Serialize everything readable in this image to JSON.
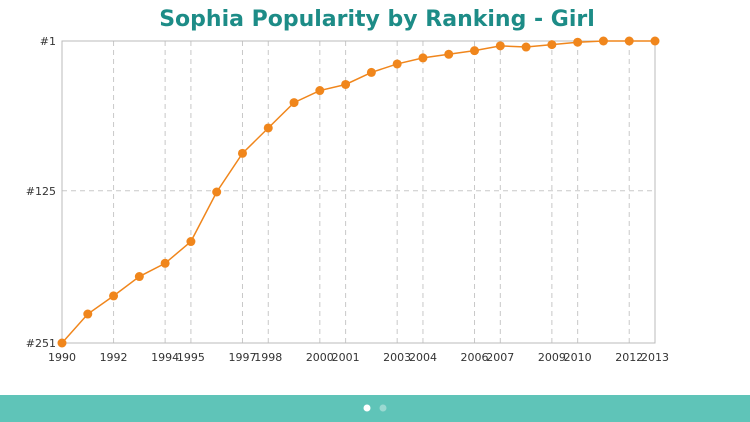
{
  "chart_data": {
    "type": "line",
    "title": "Sophia Popularity by Ranking - Girl",
    "x": [
      1990,
      1991,
      1992,
      1993,
      1994,
      1995,
      1996,
      1997,
      1998,
      1999,
      2000,
      2001,
      2002,
      2003,
      2004,
      2005,
      2006,
      2007,
      2008,
      2009,
      2010,
      2011,
      2012,
      2013
    ],
    "series": [
      {
        "name": "Sophia",
        "color": "#f0861c",
        "values": [
          251,
          227,
          212,
          196,
          185,
          167,
          126,
          94,
          73,
          52,
          42,
          37,
          27,
          20,
          15,
          12,
          9,
          5,
          6,
          4,
          2,
          1,
          1,
          1
        ]
      }
    ],
    "xlim": [
      1990,
      2013
    ],
    "xticks": [
      1990,
      1992,
      1994,
      1995,
      1997,
      1998,
      2000,
      2001,
      2003,
      2004,
      2006,
      2007,
      2009,
      2010,
      2012,
      2013
    ],
    "ylim": [
      251,
      1
    ],
    "yticks": [
      {
        "value": 1,
        "label": "#1"
      },
      {
        "value": 125,
        "label": "#125"
      },
      {
        "value": 251,
        "label": "#251"
      }
    ],
    "grid": true
  }
}
